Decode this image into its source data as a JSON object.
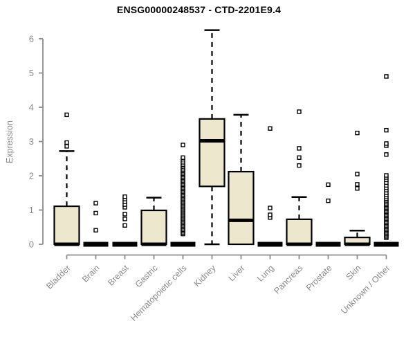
{
  "colors": {
    "background": "#FFFFFF",
    "box_fill": "#EDE7CD",
    "box_stroke": "#000000",
    "axis": "#8B8B8B",
    "tick_text": "#8B8B8B",
    "title_text": "#000000"
  },
  "chart_data": {
    "type": "boxplot",
    "title": "ENSG00000248537 - CTD-2201E9.4",
    "ylabel": "Expression",
    "xlabel": "",
    "ylim": [
      0,
      6.3
    ],
    "yticks": [
      0,
      1,
      2,
      3,
      4,
      5,
      6
    ],
    "grid": false,
    "legend": "none",
    "categories": [
      "Bladder",
      "Brain",
      "Breast",
      "Gastric",
      "Hematopoietic cells",
      "Kidney",
      "Liver",
      "Lung",
      "Pancreas",
      "Prostate",
      "Skin",
      "Unknown / Other"
    ],
    "series": [
      {
        "name": "Bladder",
        "q1": 0,
        "median": 0,
        "q3": 1.11,
        "whisker_low": 0,
        "whisker_high": 2.72,
        "outliers": [
          2.86,
          2.97,
          3.78
        ]
      },
      {
        "name": "Brain",
        "q1": 0,
        "median": 0,
        "q3": 0,
        "whisker_low": 0,
        "whisker_high": 0,
        "outliers": [
          0.41,
          0.91,
          1.2
        ]
      },
      {
        "name": "Breast",
        "q1": 0,
        "median": 0,
        "q3": 0,
        "whisker_low": 0,
        "whisker_high": 0,
        "outliers": [
          0.55,
          0.74,
          0.88,
          1.08,
          1.16,
          1.24,
          1.32,
          1.39
        ]
      },
      {
        "name": "Gastric",
        "q1": 0,
        "median": 0,
        "q3": 0.99,
        "whisker_low": 0,
        "whisker_high": 1.36,
        "outliers": []
      },
      {
        "name": "Hematopoietic cells",
        "q1": 0,
        "median": 0,
        "q3": 0,
        "whisker_low": 0,
        "whisker_high": 0,
        "outliers": [
          0.3,
          0.34,
          0.38,
          0.42,
          0.46,
          0.5,
          0.54,
          0.58,
          0.62,
          0.66,
          0.7,
          0.74,
          0.78,
          0.82,
          0.86,
          0.9,
          0.94,
          0.98,
          1.02,
          1.06,
          1.1,
          1.14,
          1.18,
          1.22,
          1.26,
          1.3,
          1.34,
          1.38,
          1.42,
          1.46,
          1.5,
          1.54,
          1.58,
          1.62,
          1.66,
          1.7,
          1.74,
          1.78,
          1.82,
          1.86,
          1.9,
          1.94,
          1.98,
          2.02,
          2.06,
          2.1,
          2.14,
          2.18,
          2.22,
          2.27,
          2.32,
          2.37,
          2.42,
          2.48,
          2.53,
          2.9
        ]
      },
      {
        "name": "Kidney",
        "q1": 1.69,
        "median": 3.02,
        "q3": 3.66,
        "whisker_low": 0,
        "whisker_high": 6.25,
        "outliers": []
      },
      {
        "name": "Liver",
        "q1": 0,
        "median": 0.7,
        "q3": 2.12,
        "whisker_low": 0,
        "whisker_high": 3.78,
        "outliers": []
      },
      {
        "name": "Lung",
        "q1": 0,
        "median": 0,
        "q3": 0,
        "whisker_low": 0,
        "whisker_high": 0,
        "outliers": [
          0.78,
          0.86,
          1.06,
          3.38
        ]
      },
      {
        "name": "Pancreas",
        "q1": 0,
        "median": 0,
        "q3": 0.73,
        "whisker_low": 0,
        "whisker_high": 1.38,
        "outliers": [
          2.3,
          2.53,
          2.8,
          3.87
        ]
      },
      {
        "name": "Prostate",
        "q1": 0,
        "median": 0,
        "q3": 0,
        "whisker_low": 0,
        "whisker_high": 0,
        "outliers": [
          1.27,
          1.74
        ]
      },
      {
        "name": "Skin",
        "q1": 0,
        "median": 0,
        "q3": 0.2,
        "whisker_low": 0,
        "whisker_high": 0.4,
        "outliers": [
          1.63,
          1.75,
          2.05,
          3.25
        ]
      },
      {
        "name": "Unknown / Other",
        "q1": 0,
        "median": 0,
        "q3": 0,
        "whisker_low": 0,
        "whisker_high": 0,
        "outliers": [
          0.19,
          0.23,
          0.27,
          0.31,
          0.35,
          0.39,
          0.43,
          0.47,
          0.51,
          0.55,
          0.59,
          0.63,
          0.67,
          0.71,
          0.75,
          0.79,
          0.83,
          0.87,
          0.91,
          0.95,
          0.99,
          1.03,
          1.07,
          1.11,
          1.15,
          1.19,
          1.23,
          1.28,
          1.33,
          1.38,
          1.44,
          1.51,
          1.58,
          1.65,
          1.72,
          1.8,
          1.88,
          1.95,
          2.01,
          2.62,
          2.88,
          2.94,
          3.33,
          4.9
        ]
      }
    ]
  }
}
